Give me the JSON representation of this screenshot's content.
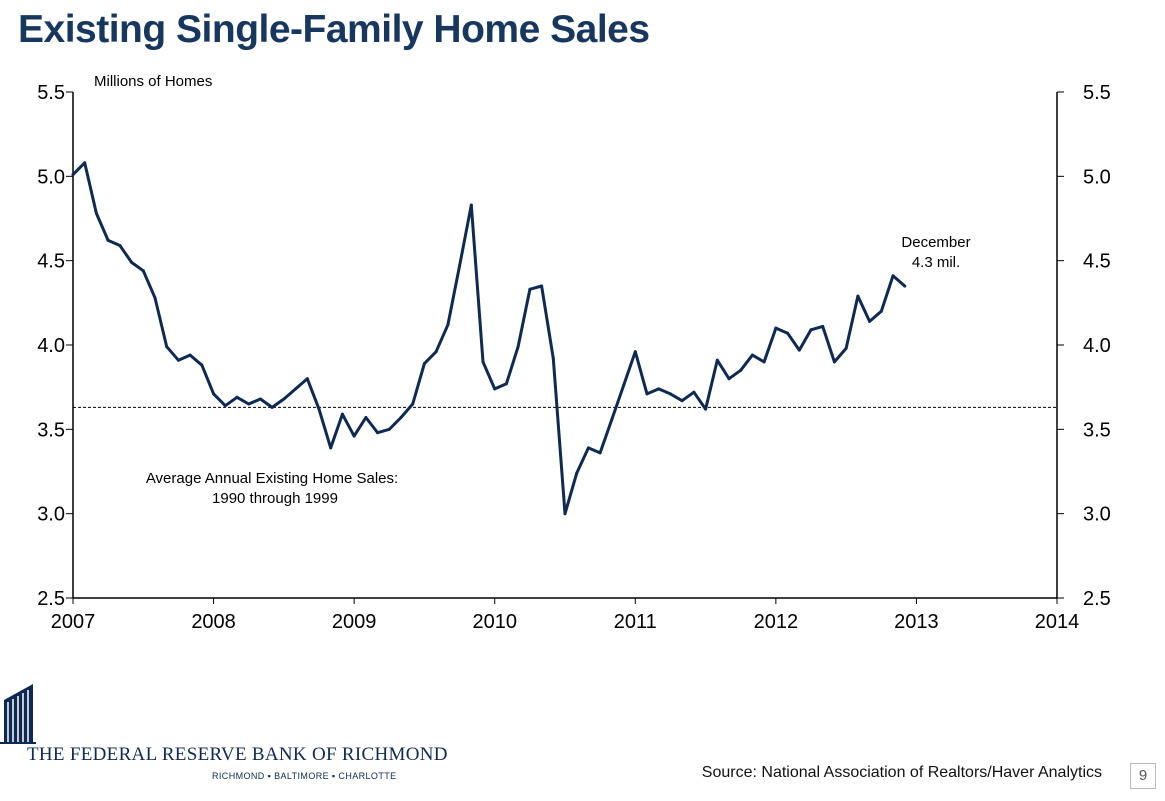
{
  "slide": {
    "title": "Existing Single-Family Home Sales",
    "source": "Source: National Association of Realtors/Haver Analytics",
    "page_number": "9"
  },
  "logo": {
    "name": "THE FEDERAL RESERVE BANK OF RICHMOND",
    "cities": "RICHMOND ▪ BALTIMORE ▪ CHARLOTTE"
  },
  "colors": {
    "series": "#0f2a52",
    "title": "#17375e"
  },
  "chart_data": {
    "type": "line",
    "title": "Existing Single-Family Home Sales",
    "ylabel": "Millions of Homes",
    "xlabel": "",
    "xlim": [
      2007,
      2014
    ],
    "ylim": [
      2.5,
      5.5
    ],
    "yticks": [
      "2.5",
      "3.0",
      "3.5",
      "4.0",
      "4.5",
      "5.0",
      "5.5"
    ],
    "xticks": [
      "2007",
      "2008",
      "2009",
      "2010",
      "2011",
      "2012",
      "2013",
      "2014"
    ],
    "series": [
      {
        "name": "Existing Single-Family Home Sales",
        "x": [
          2007.0,
          2007.0833,
          2007.1667,
          2007.25,
          2007.3333,
          2007.4167,
          2007.5,
          2007.5833,
          2007.6667,
          2007.75,
          2007.8333,
          2007.9167,
          2008.0,
          2008.0833,
          2008.1667,
          2008.25,
          2008.3333,
          2008.4167,
          2008.5,
          2008.5833,
          2008.6667,
          2008.75,
          2008.8333,
          2008.9167,
          2009.0,
          2009.0833,
          2009.1667,
          2009.25,
          2009.3333,
          2009.4167,
          2009.5,
          2009.5833,
          2009.6667,
          2009.75,
          2009.8333,
          2009.9167,
          2010.0,
          2010.0833,
          2010.1667,
          2010.25,
          2010.3333,
          2010.4167,
          2010.5,
          2010.5833,
          2010.6667,
          2010.75,
          2010.8333,
          2010.9167,
          2011.0,
          2011.0833,
          2011.1667,
          2011.25,
          2011.3333,
          2011.4167,
          2011.5,
          2011.5833,
          2011.6667,
          2011.75,
          2011.8333,
          2011.9167,
          2012.0,
          2012.0833,
          2012.1667,
          2012.25,
          2012.3333,
          2012.4167,
          2012.5,
          2012.5833,
          2012.6667,
          2012.75,
          2012.8333,
          2012.9167
        ],
        "values": [
          5.01,
          5.08,
          4.78,
          4.62,
          4.59,
          4.49,
          4.44,
          4.28,
          3.99,
          3.91,
          3.94,
          3.88,
          3.71,
          3.64,
          3.69,
          3.65,
          3.68,
          3.63,
          3.68,
          3.74,
          3.8,
          3.62,
          3.39,
          3.59,
          3.46,
          3.57,
          3.48,
          3.5,
          3.57,
          3.65,
          3.89,
          3.96,
          4.12,
          4.47,
          4.83,
          3.9,
          3.74,
          3.77,
          3.99,
          4.33,
          4.35,
          3.92,
          3.0,
          3.24,
          3.39,
          3.36,
          3.56,
          3.76,
          3.96,
          3.71,
          3.74,
          3.71,
          3.67,
          3.72,
          3.62,
          3.91,
          3.8,
          3.85,
          3.94,
          3.9,
          4.1,
          4.07,
          3.97,
          4.09,
          4.11,
          3.9,
          3.98,
          4.29,
          4.14,
          4.2,
          4.41,
          4.35
        ]
      }
    ],
    "reference_line": {
      "value": 3.63,
      "label_line1": "Average Annual Existing Home Sales:",
      "label_line2": "1990 through 1999"
    },
    "annotation": {
      "line1": "December",
      "line2": "4.3 mil."
    }
  }
}
